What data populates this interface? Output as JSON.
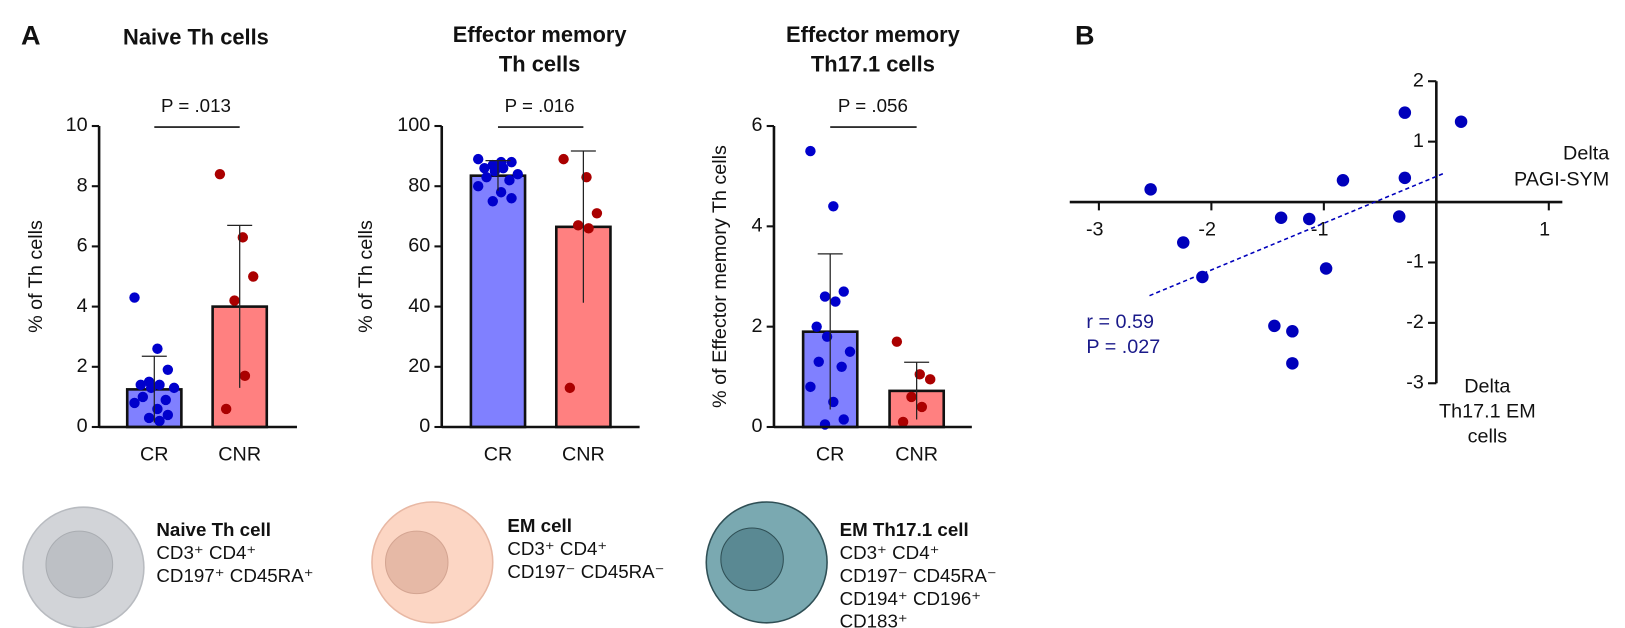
{
  "panel_labels": [
    "A",
    "B"
  ],
  "chart_data": [
    {
      "type": "bar",
      "title": [
        "Naive Th cells"
      ],
      "ylabel": "% of Th cells",
      "annotation": "P = .013",
      "categories": [
        "CR",
        "CNR"
      ],
      "values": [
        1.25,
        4.0
      ],
      "errors": [
        1.1,
        2.7
      ],
      "colors": [
        "#8080ff",
        "#ff8080"
      ],
      "point_colors": [
        "#0000cc",
        "#aa0000"
      ],
      "points": [
        [
          4.3,
          2.6,
          1.9,
          1.5,
          1.4,
          1.4,
          1.3,
          1.3,
          1.0,
          0.9,
          0.8,
          0.6,
          0.4,
          0.3,
          0.2
        ],
        [
          8.4,
          6.3,
          5.0,
          4.2,
          1.7,
          0.6
        ]
      ],
      "ylim": [
        0,
        10
      ],
      "yticks": [
        0,
        2,
        4,
        6,
        8,
        10
      ]
    },
    {
      "type": "bar",
      "title": [
        "Effector memory",
        "Th cells"
      ],
      "ylabel": "% of Th cells",
      "annotation": "P = .016",
      "categories": [
        "CR",
        "CNR"
      ],
      "values": [
        83.5,
        66.5
      ],
      "errors": [
        5,
        25.2
      ],
      "colors": [
        "#8080ff",
        "#ff8080"
      ],
      "point_colors": [
        "#0000cc",
        "#aa0000"
      ],
      "points": [
        [
          89,
          88,
          88,
          87,
          86,
          86,
          85,
          84,
          83,
          82,
          80,
          78,
          76,
          75
        ],
        [
          89,
          83,
          71,
          67,
          66,
          13
        ]
      ],
      "ylim": [
        0,
        100
      ],
      "yticks": [
        0,
        20,
        40,
        60,
        80,
        100
      ]
    },
    {
      "type": "bar",
      "title": [
        "Effector memory",
        "Th17.1 cells"
      ],
      "ylabel": "% of Effector memory Th cells",
      "annotation": "P = .056",
      "categories": [
        "CR",
        "CNR"
      ],
      "values": [
        1.9,
        0.72
      ],
      "errors": [
        1.55,
        0.57
      ],
      "colors": [
        "#8080ff",
        "#ff8080"
      ],
      "point_colors": [
        "#0000cc",
        "#aa0000"
      ],
      "points": [
        [
          5.5,
          4.4,
          2.7,
          2.6,
          2.5,
          2.0,
          1.8,
          1.5,
          1.3,
          1.2,
          0.8,
          0.5,
          0.15,
          0.05
        ],
        [
          1.7,
          1.05,
          0.95,
          0.6,
          0.4,
          0.1
        ]
      ],
      "ylim": [
        0,
        6
      ],
      "yticks": [
        0,
        2,
        4,
        6
      ]
    },
    {
      "type": "scatter",
      "xlabel": [
        "Delta",
        "PAGI-SYM"
      ],
      "ylabel": [
        "Delta",
        "Th17.1 EM",
        "cells"
      ],
      "annotations": [
        "r = 0.59",
        "P = .027"
      ],
      "color": "#0000bb",
      "x": [
        -2.54,
        -2.25,
        -2.08,
        -1.38,
        -1.13,
        -0.98,
        -1.44,
        -1.28,
        -1.28,
        -0.83,
        -0.33,
        -0.28,
        -0.28,
        0.22
      ],
      "y": [
        0.21,
        -0.67,
        -1.24,
        -0.26,
        -0.28,
        -1.1,
        -2.05,
        -2.14,
        -2.67,
        0.36,
        -0.24,
        0.4,
        1.48,
        1.33
      ],
      "fit": {
        "x": [
          -2.55,
          0.06
        ],
        "y": [
          -1.55,
          0.47
        ]
      },
      "xlim": [
        -3,
        1
      ],
      "ylim": [
        -3,
        2
      ],
      "xticks": [
        -3,
        -2,
        -1,
        1
      ],
      "yticks": [
        -3,
        -2,
        -1,
        1,
        2
      ]
    }
  ],
  "cells": [
    {
      "title": "Naive Th cell",
      "lines": [
        "CD3⁺ CD4⁺",
        "CD197⁺ CD45RA⁺"
      ]
    },
    {
      "title": "EM cell",
      "lines": [
        "CD3⁺ CD4⁺",
        "CD197⁻ CD45RA⁻"
      ]
    },
    {
      "title": "EM Th17.1 cell",
      "lines": [
        "CD3⁺ CD4⁺",
        "CD197⁻ CD45RA⁻",
        "CD194⁺ CD196⁺",
        "CD183⁺"
      ]
    }
  ]
}
